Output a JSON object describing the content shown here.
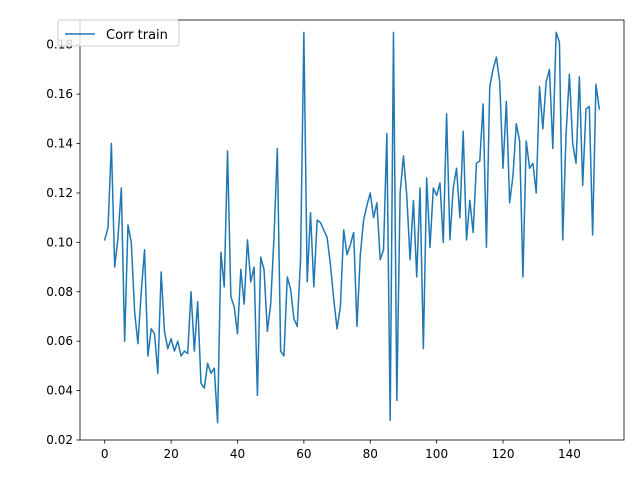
{
  "chart_data": {
    "type": "line",
    "title": "",
    "xlabel": "",
    "ylabel": "",
    "xlim": [
      -7.45,
      156.45
    ],
    "ylim": [
      0.02,
      0.19
    ],
    "xticks": [
      0,
      20,
      40,
      60,
      80,
      100,
      120,
      140
    ],
    "yticks": [
      0.02,
      0.04,
      0.06,
      0.08,
      0.1,
      0.12,
      0.14,
      0.16,
      0.18
    ],
    "xtick_labels": [
      "0",
      "20",
      "40",
      "60",
      "80",
      "100",
      "120",
      "140"
    ],
    "ytick_labels": [
      "0.02",
      "0.04",
      "0.06",
      "0.08",
      "0.10",
      "0.12",
      "0.14",
      "0.16",
      "0.18"
    ],
    "grid": false,
    "legend_position": "upper-left",
    "colors": {
      "series": "#1f77b4",
      "axes": "#000000",
      "legend_border": "#cccccc"
    },
    "series": [
      {
        "name": "Corr train",
        "x": [
          0,
          1,
          2,
          3,
          4,
          5,
          6,
          7,
          8,
          9,
          10,
          11,
          12,
          13,
          14,
          15,
          16,
          17,
          18,
          19,
          20,
          21,
          22,
          23,
          24,
          25,
          26,
          27,
          28,
          29,
          30,
          31,
          32,
          33,
          34,
          35,
          36,
          37,
          38,
          39,
          40,
          41,
          42,
          43,
          44,
          45,
          46,
          47,
          48,
          49,
          50,
          51,
          52,
          53,
          54,
          55,
          56,
          57,
          58,
          59,
          60,
          61,
          62,
          63,
          64,
          65,
          66,
          67,
          68,
          69,
          70,
          71,
          72,
          73,
          74,
          75,
          76,
          77,
          78,
          79,
          80,
          81,
          82,
          83,
          84,
          85,
          86,
          87,
          88,
          89,
          90,
          91,
          92,
          93,
          94,
          95,
          96,
          97,
          98,
          99,
          100,
          101,
          102,
          103,
          104,
          105,
          106,
          107,
          108,
          109,
          110,
          111,
          112,
          113,
          114,
          115,
          116,
          117,
          118,
          119,
          120,
          121,
          122,
          123,
          124,
          125,
          126,
          127,
          128,
          129,
          130,
          131,
          132,
          133,
          134,
          135,
          136,
          137,
          138,
          139,
          140,
          141,
          142,
          143,
          144,
          145,
          146,
          147,
          148,
          149
        ],
        "values": [
          0.101,
          0.106,
          0.14,
          0.09,
          0.102,
          0.122,
          0.06,
          0.107,
          0.1,
          0.072,
          0.059,
          0.08,
          0.097,
          0.054,
          0.065,
          0.063,
          0.047,
          0.088,
          0.064,
          0.057,
          0.061,
          0.056,
          0.06,
          0.054,
          0.056,
          0.055,
          0.08,
          0.056,
          0.076,
          0.043,
          0.041,
          0.051,
          0.047,
          0.049,
          0.027,
          0.096,
          0.082,
          0.137,
          0.078,
          0.074,
          0.063,
          0.089,
          0.075,
          0.101,
          0.084,
          0.09,
          0.038,
          0.094,
          0.089,
          0.064,
          0.075,
          0.102,
          0.138,
          0.056,
          0.054,
          0.086,
          0.081,
          0.069,
          0.066,
          0.093,
          0.185,
          0.084,
          0.112,
          0.082,
          0.109,
          0.108,
          0.105,
          0.102,
          0.091,
          0.077,
          0.065,
          0.074,
          0.105,
          0.095,
          0.099,
          0.104,
          0.066,
          0.095,
          0.109,
          0.115,
          0.12,
          0.11,
          0.116,
          0.093,
          0.097,
          0.144,
          0.028,
          0.185,
          0.036,
          0.12,
          0.135,
          0.119,
          0.093,
          0.117,
          0.086,
          0.122,
          0.057,
          0.126,
          0.098,
          0.122,
          0.119,
          0.124,
          0.1,
          0.152,
          0.101,
          0.122,
          0.13,
          0.11,
          0.145,
          0.101,
          0.117,
          0.104,
          0.132,
          0.133,
          0.156,
          0.098,
          0.163,
          0.17,
          0.175,
          0.165,
          0.13,
          0.157,
          0.116,
          0.127,
          0.148,
          0.141,
          0.086,
          0.141,
          0.13,
          0.132,
          0.12,
          0.163,
          0.146,
          0.165,
          0.17,
          0.138,
          0.185,
          0.181,
          0.101,
          0.144,
          0.168,
          0.14,
          0.132,
          0.167,
          0.123,
          0.154,
          0.155,
          0.103,
          0.164,
          0.154
        ]
      }
    ]
  }
}
